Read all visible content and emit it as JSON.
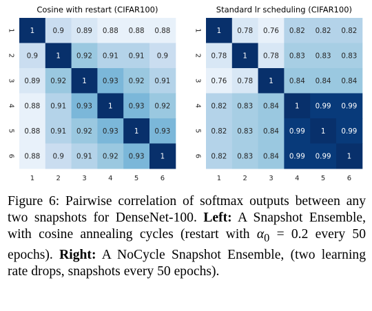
{
  "chart_data": [
    {
      "type": "heatmap",
      "title": "Cosine with restart (CIFAR100)",
      "x_labels": [
        "1",
        "2",
        "3",
        "4",
        "5",
        "6"
      ],
      "y_labels": [
        "1",
        "2",
        "3",
        "4",
        "5",
        "6"
      ],
      "values": [
        [
          1,
          0.9,
          0.89,
          0.88,
          0.88,
          0.88
        ],
        [
          0.9,
          1,
          0.92,
          0.91,
          0.91,
          0.9
        ],
        [
          0.89,
          0.92,
          1,
          0.93,
          0.92,
          0.91
        ],
        [
          0.88,
          0.91,
          0.93,
          1,
          0.93,
          0.92
        ],
        [
          0.88,
          0.91,
          0.92,
          0.93,
          1,
          0.93
        ],
        [
          0.88,
          0.9,
          0.91,
          0.92,
          0.93,
          1
        ]
      ],
      "colormap": "Blues",
      "vmin": 0.87,
      "vmax": 1.0
    },
    {
      "type": "heatmap",
      "title": "Standard lr scheduling (CIFAR100)",
      "x_labels": [
        "1",
        "2",
        "3",
        "4",
        "5",
        "6"
      ],
      "y_labels": [
        "1",
        "2",
        "3",
        "4",
        "5",
        "6"
      ],
      "values": [
        [
          1,
          0.78,
          0.76,
          0.82,
          0.82,
          0.82
        ],
        [
          0.78,
          1,
          0.78,
          0.83,
          0.83,
          0.83
        ],
        [
          0.76,
          0.78,
          1,
          0.84,
          0.84,
          0.84
        ],
        [
          0.82,
          0.83,
          0.84,
          1,
          0.99,
          0.99
        ],
        [
          0.82,
          0.83,
          0.84,
          0.99,
          1,
          0.99
        ],
        [
          0.82,
          0.83,
          0.84,
          0.99,
          0.99,
          1
        ]
      ],
      "colormap": "Blues",
      "vmin": 0.74,
      "vmax": 1.0
    }
  ],
  "caption": {
    "figure_label": "Figure 6:",
    "text_1": " Pairwise correlation of softmax outputs between any two snapshots for DenseNet-100. ",
    "left_label": "Left:",
    "text_2": " A Snapshot Ensemble, with cosine annealing cycles (restart with ",
    "alpha_symbol": "α",
    "alpha_subscript": "0",
    "text_3": " = 0.2 every 50 epochs). ",
    "right_label": "Right:",
    "text_4": " A NoCycle Snapshot Ensemble, (two learning rate drops, snapshots every 50 epochs)."
  }
}
